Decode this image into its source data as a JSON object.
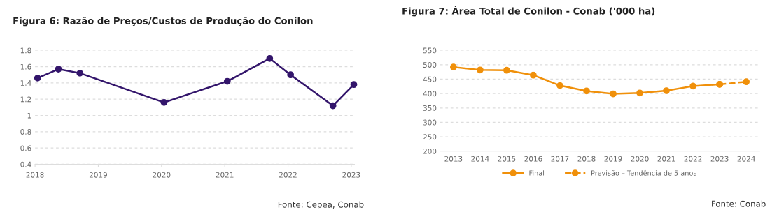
{
  "chart_data": [
    {
      "type": "line",
      "title": "Figura 6: Razão de Preços/Custos de Produção do Conilon",
      "x": [
        2018.04,
        2018.37,
        2018.71,
        2020.04,
        2021.04,
        2021.71,
        2022.04,
        2022.71,
        2023.04
      ],
      "series": [
        {
          "color": "#33156b",
          "values": [
            1.46,
            1.57,
            1.52,
            1.16,
            1.42,
            1.7,
            1.5,
            1.12,
            1.38
          ]
        }
      ],
      "xlim": [
        2018,
        2023.05
      ],
      "xticks": [
        2018,
        2019,
        2020,
        2021,
        2022,
        2023
      ],
      "ylim": [
        0.4,
        1.8
      ],
      "yticks": [
        0.4,
        0.6,
        0.8,
        1,
        1.2,
        1.4,
        1.6,
        1.8
      ],
      "grid": "y",
      "marker": "circle",
      "line_style": "solid",
      "annotations": [
        "Fonte: Cepea, Conab"
      ]
    },
    {
      "type": "line",
      "title": "Figura 7: Área Total de Conilon - Conab ('000 ha)",
      "categories": [
        "2013",
        "2014",
        "2015",
        "2016",
        "2017",
        "2018",
        "2019",
        "2020",
        "2021",
        "2022",
        "2023",
        "2024"
      ],
      "series": [
        {
          "name": "Final",
          "color": "#f0900a",
          "line_style": "solid",
          "values": [
            492,
            482,
            481,
            464,
            428,
            409,
            399,
            402,
            410,
            426,
            432,
            null
          ]
        },
        {
          "name": "Previsão – Tendência de 5 anos",
          "color": "#f0900a",
          "line_style": "dashed",
          "values": [
            null,
            null,
            null,
            null,
            null,
            null,
            null,
            null,
            null,
            null,
            432,
            441
          ]
        }
      ],
      "ylim": [
        200,
        550
      ],
      "yticks": [
        200,
        250,
        300,
        350,
        400,
        450,
        500,
        550
      ],
      "grid": "y",
      "marker": "circle",
      "legend": "bottom",
      "annotations": [
        "Fonte: Conab"
      ]
    }
  ]
}
